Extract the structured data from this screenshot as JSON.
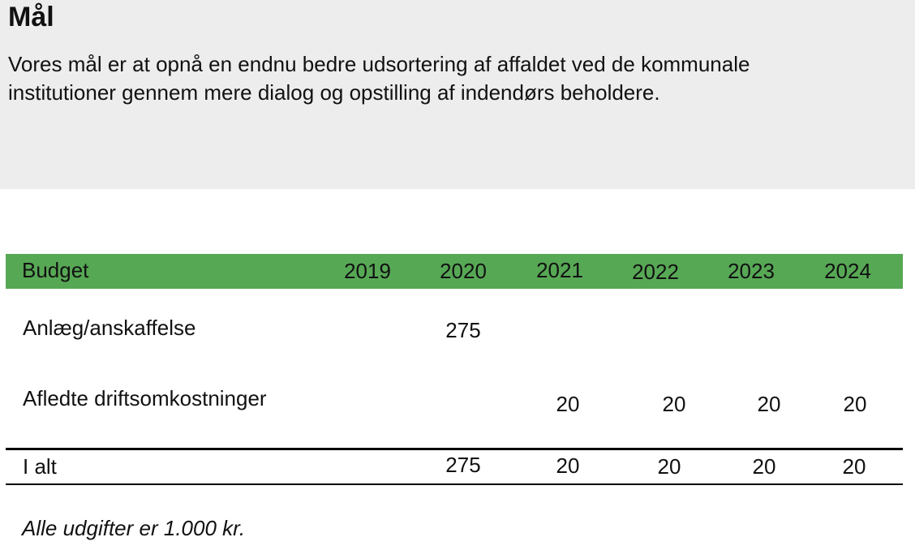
{
  "goal": {
    "title": "Mål",
    "text": "Vores mål er at opnå en endnu bedre udsortering af affaldet ved de kommunale institutioner gennem mere dialog og opstilling af indendørs beholdere."
  },
  "budget": {
    "header": {
      "label": "Budget",
      "years": [
        "2019",
        "2020",
        "2021",
        "2022",
        "2023",
        "2024"
      ]
    },
    "rows": [
      {
        "label": "Anlæg/anskaffelse",
        "values": [
          "",
          "275",
          "",
          "",
          "",
          ""
        ]
      },
      {
        "label": "Afledte driftsomkostninger",
        "values": [
          "",
          "",
          "20",
          "20",
          "20",
          "20"
        ]
      }
    ],
    "total": {
      "label": "I alt",
      "values": [
        "",
        "275",
        "20",
        "20",
        "20",
        "20"
      ]
    },
    "note": "Alle udgifter er 1.000 kr."
  },
  "colors": {
    "header_green": "#57a855",
    "goal_bg": "#ededed"
  }
}
